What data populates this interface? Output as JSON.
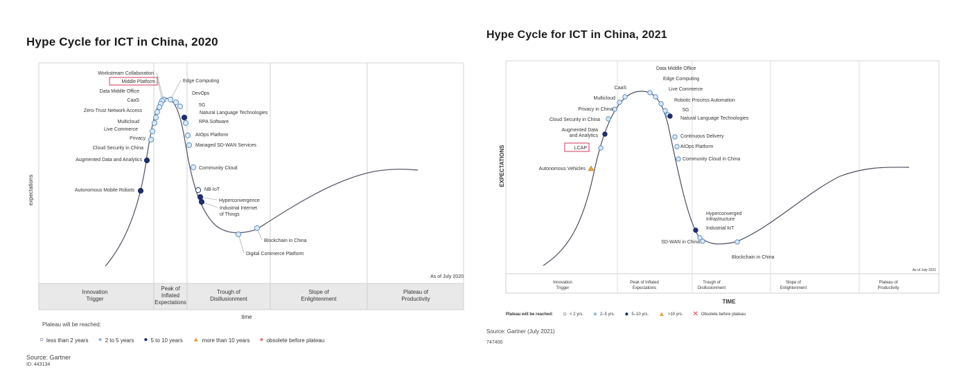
{
  "chart_data": [
    {
      "type": "hype-cycle",
      "title": "Hype Cycle for ICT in China, 2020",
      "xlabel": "time",
      "ylabel": "expectations",
      "as_of": "As of July 2020",
      "phases": [
        "Innovation Trigger",
        "Peak of Inflated Expectations",
        "Trough of Disillusionment",
        "Slope of Enlightenment",
        "Plateau of Productivity"
      ],
      "legend_title": "Plateau will be reached:",
      "legend": [
        {
          "label": "less than 2 years",
          "symbol": "open",
          "color": "#1f2d6b"
        },
        {
          "label": "2 to 5 years",
          "symbol": "light",
          "color": "#8fb8e0"
        },
        {
          "label": "5 to 10 years",
          "symbol": "dark",
          "color": "#1f2d6b"
        },
        {
          "label": "more than 10 years",
          "symbol": "triangle",
          "color": "#e8a33a"
        },
        {
          "label": "obsolete before plateau",
          "symbol": "pink",
          "color": "#e77b7b"
        }
      ],
      "source": "Source: Gartner",
      "id": "ID: 443134",
      "technologies": [
        {
          "name": "Workstream Collaboration",
          "side": "left",
          "t": 0.365,
          "class": "light"
        },
        {
          "name": "Middle Platform",
          "side": "left",
          "t": 0.36,
          "class": "light",
          "highlight": true
        },
        {
          "name": "Data Middle Office",
          "side": "left",
          "t": 0.35,
          "class": "light"
        },
        {
          "name": "CaaS",
          "side": "left",
          "t": 0.34,
          "class": "light"
        },
        {
          "name": "Zero-Trust Network Access",
          "side": "left",
          "t": 0.33,
          "class": "light"
        },
        {
          "name": "Multicloud",
          "side": "left",
          "t": 0.325,
          "class": "light"
        },
        {
          "name": "Live Commerce",
          "side": "left",
          "t": 0.32,
          "class": "light"
        },
        {
          "name": "Privacy",
          "side": "left",
          "t": 0.312,
          "class": "light"
        },
        {
          "name": "Cloud Security in China",
          "side": "left",
          "t": 0.305,
          "class": "light"
        },
        {
          "name": "Augmented Data and Analytics",
          "side": "left",
          "t": 0.29,
          "class": "dark"
        },
        {
          "name": "Autonomous Mobile Robots",
          "side": "left",
          "t": 0.26,
          "class": "dark"
        },
        {
          "name": "Edge Computing",
          "side": "right",
          "t": 0.41,
          "class": "light"
        },
        {
          "name": "DevOps",
          "side": "right",
          "t": 0.42,
          "class": "light"
        },
        {
          "name": "5G",
          "side": "right",
          "t": 0.43,
          "class": "light"
        },
        {
          "name": "Natural Language Technologies",
          "side": "right",
          "t": 0.435,
          "class": "dark"
        },
        {
          "name": "RPA Software",
          "side": "right",
          "t": 0.44,
          "class": "light"
        },
        {
          "name": "AIOps Platform",
          "side": "right",
          "t": 0.45,
          "class": "light"
        },
        {
          "name": "Managed SD-WAN Services",
          "side": "right",
          "t": 0.455,
          "class": "light"
        },
        {
          "name": "Community Cloud",
          "side": "right",
          "t": 0.465,
          "class": "light"
        },
        {
          "name": "NB-IoT",
          "side": "right",
          "t": 0.485,
          "class": "open"
        },
        {
          "name": "Hyperconvergence",
          "side": "right",
          "t": 0.49,
          "class": "dark"
        },
        {
          "name": "Industrial Internet of Things",
          "side": "right",
          "t": 0.495,
          "class": "dark"
        },
        {
          "name": "Blockchain in China",
          "side": "right",
          "t": 0.6,
          "class": "light"
        },
        {
          "name": "Digital Commerce Platform",
          "side": "right",
          "t": 0.55,
          "class": "light"
        }
      ]
    },
    {
      "type": "hype-cycle",
      "title": "Hype Cycle for ICT in China, 2021",
      "xlabel": "TIME",
      "ylabel": "EXPECTATIONS",
      "as_of": "As of July 2021",
      "phases": [
        "Innovation Trigger",
        "Peak of Inflated Expectations",
        "Trough of Disillusionment",
        "Slope of Enlightenment",
        "Plateau of Productivity"
      ],
      "legend_title": "Plateau will be reached:",
      "legend": [
        {
          "label": "< 2 yrs.",
          "symbol": "open",
          "color": "#1f2d6b"
        },
        {
          "label": "2–5 yrs.",
          "symbol": "light",
          "color": "#8fb8e0"
        },
        {
          "label": "5–10 yrs.",
          "symbol": "dark",
          "color": "#1f2d6b"
        },
        {
          "label": ">10 yrs.",
          "symbol": "triangle",
          "color": "#e8a33a"
        },
        {
          "label": "Obsolete before plateau",
          "symbol": "x",
          "color": "#e04040"
        }
      ],
      "source": "Source: Gartner (July 2021)",
      "id": "747400",
      "technologies": [
        {
          "name": "Data Middle Office",
          "side": "right",
          "class": "light"
        },
        {
          "name": "Edge Computing",
          "side": "right",
          "class": "light"
        },
        {
          "name": "Live Commerce",
          "side": "right",
          "class": "light"
        },
        {
          "name": "Robotic Process Automation",
          "side": "right",
          "class": "light"
        },
        {
          "name": "5G",
          "side": "right",
          "class": "light"
        },
        {
          "name": "Natural Language Technologies",
          "side": "right",
          "class": "dark"
        },
        {
          "name": "Continuous Delivery",
          "side": "right",
          "class": "light"
        },
        {
          "name": "AIOps Platform",
          "side": "right",
          "class": "light"
        },
        {
          "name": "Community Cloud in China",
          "side": "right",
          "class": "light"
        },
        {
          "name": "CaaS",
          "side": "left",
          "class": "light"
        },
        {
          "name": "Multicloud",
          "side": "left",
          "class": "light"
        },
        {
          "name": "Privacy in China",
          "side": "left",
          "class": "light"
        },
        {
          "name": "Cloud Security in China",
          "side": "left",
          "class": "light"
        },
        {
          "name": "Augmented Data and Analytics",
          "side": "left",
          "class": "dark"
        },
        {
          "name": "LCAP",
          "side": "left",
          "class": "light",
          "highlight": true
        },
        {
          "name": "Autonomous Vehicles",
          "side": "left",
          "class": "triangle"
        },
        {
          "name": "Hyperconverged Infrastructure",
          "side": "right",
          "class": "light"
        },
        {
          "name": "Industrial IoT",
          "side": "right",
          "class": "light"
        },
        {
          "name": "SD-WAN in China",
          "side": "left",
          "class": "dark"
        },
        {
          "name": "Blockchain in China",
          "side": "right",
          "class": "light"
        }
      ]
    }
  ]
}
